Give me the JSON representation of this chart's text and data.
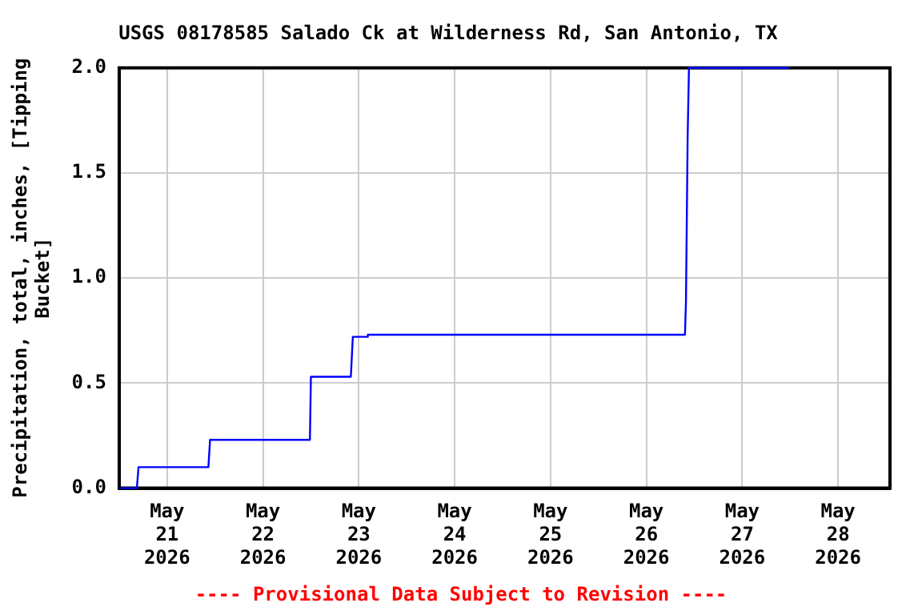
{
  "chart_data": {
    "type": "line",
    "title": "USGS 08178585 Salado Ck at Wilderness Rd, San Antonio, TX",
    "ylabel": "Precipitation, total, inches, [Tipping Bucket]",
    "annotations": [
      "---- Provisional Data Subject to Revision ----"
    ],
    "x": [
      "2026-05-20T12:15",
      "2026-05-20T16:25",
      "2026-05-20T16:50",
      "2026-05-21T10:20",
      "2026-05-21T10:45",
      "2026-05-22T11:45",
      "2026-05-22T12:00",
      "2026-05-22T22:00",
      "2026-05-22T22:30",
      "2026-05-23T02:00",
      "2026-05-23T02:15",
      "2026-05-26T09:40",
      "2026-05-26T09:55",
      "2026-05-26T10:20",
      "2026-05-26T10:40",
      "2026-05-27T11:45"
    ],
    "series": [
      {
        "color": "#0000ff",
        "values": [
          0.0,
          0.0,
          0.1,
          0.1,
          0.23,
          0.23,
          0.53,
          0.53,
          0.72,
          0.72,
          0.73,
          0.73,
          0.89,
          1.67,
          2.0,
          2.0
        ]
      }
    ],
    "xlim": [
      "2026-05-20T12:00",
      "2026-05-28T13:00"
    ],
    "xticks": [
      {
        "value": "2026-05-21",
        "label": "May 21 2026"
      },
      {
        "value": "2026-05-22",
        "label": "May 22 2026"
      },
      {
        "value": "2026-05-23",
        "label": "May 23 2026"
      },
      {
        "value": "2026-05-24",
        "label": "May 24 2026"
      },
      {
        "value": "2026-05-25",
        "label": "May 25 2026"
      },
      {
        "value": "2026-05-26",
        "label": "May 26 2026"
      },
      {
        "value": "2026-05-27",
        "label": "May 27 2026"
      },
      {
        "value": "2026-05-28",
        "label": "May 28 2026"
      }
    ],
    "ylim": [
      0,
      2.0
    ],
    "yticks": [
      {
        "value": 0,
        "label": "0.0"
      },
      {
        "value": 0.5,
        "label": "0.5"
      },
      {
        "value": 1,
        "label": "1.0"
      },
      {
        "value": 1.5,
        "label": "1.5"
      },
      {
        "value": 2,
        "label": "2.0"
      }
    ],
    "grid": true,
    "legend": false,
    "marker": "none",
    "line_style": "solid"
  }
}
